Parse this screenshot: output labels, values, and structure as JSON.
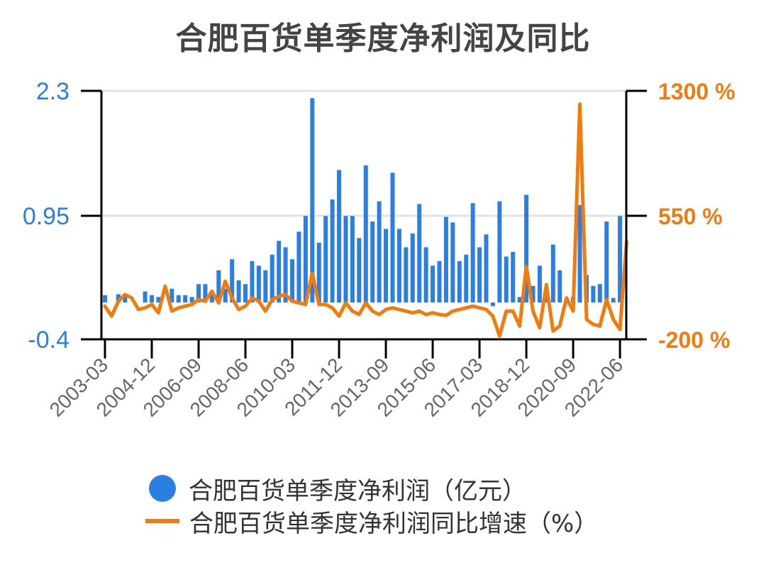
{
  "title": "合肥百货单季度净利润及同比",
  "legend": {
    "bar_label": "合肥百货单季度净利润（亿元）",
    "line_label": "合肥百货单季度净利润同比增速（%）"
  },
  "axes": {
    "left_ticks": [
      "2.3",
      "0.95",
      "-0.4"
    ],
    "right_ticks": [
      "1300 %",
      "550 %",
      "-200 %"
    ],
    "x_ticks": [
      "2003-03",
      "2004-12",
      "2006-09",
      "2008-06",
      "2010-03",
      "2011-12",
      "2013-09",
      "2015-06",
      "2017-03",
      "2018-12",
      "2020-09",
      "2022-06"
    ]
  },
  "colors": {
    "bar": "#2a7fe0",
    "line": "#f07c0f",
    "grid": "#e3e3e3",
    "axis": "#000000"
  },
  "chart_data": {
    "type": "bar+line",
    "title": "合肥百货单季度净利润及同比",
    "xlabel": "",
    "ylabel_left": "净利润（亿元）",
    "ylabel_right": "同比增速（%）",
    "ylim_left": [
      -0.4,
      2.3
    ],
    "ylim_right": [
      -200,
      1300
    ],
    "grid": true,
    "legend_position": "bottom",
    "categories": [
      "2003-03",
      "2003-06",
      "2003-09",
      "2003-12",
      "2004-03",
      "2004-06",
      "2004-09",
      "2004-12",
      "2005-03",
      "2005-06",
      "2005-09",
      "2005-12",
      "2006-03",
      "2006-06",
      "2006-09",
      "2006-12",
      "2007-03",
      "2007-06",
      "2007-09",
      "2007-12",
      "2008-03",
      "2008-06",
      "2008-09",
      "2008-12",
      "2009-03",
      "2009-06",
      "2009-09",
      "2009-12",
      "2010-03",
      "2010-06",
      "2010-09",
      "2010-12",
      "2011-03",
      "2011-06",
      "2011-09",
      "2011-12",
      "2012-03",
      "2012-06",
      "2012-09",
      "2012-12",
      "2013-03",
      "2013-06",
      "2013-09",
      "2013-12",
      "2014-03",
      "2014-06",
      "2014-09",
      "2014-12",
      "2015-03",
      "2015-06",
      "2015-09",
      "2015-12",
      "2016-03",
      "2016-06",
      "2016-09",
      "2016-12",
      "2017-03",
      "2017-06",
      "2017-09",
      "2017-12",
      "2018-03",
      "2018-06",
      "2018-09",
      "2018-12",
      "2019-03",
      "2019-06",
      "2019-09",
      "2019-12",
      "2020-03",
      "2020-06",
      "2020-09",
      "2020-12",
      "2021-03",
      "2021-06",
      "2021-09",
      "2021-12",
      "2022-03",
      "2022-06",
      "2022-09"
    ],
    "series": [
      {
        "name": "合肥百货单季度净利润（亿元）",
        "type": "bar",
        "axis": "left",
        "values": [
          0.08,
          0.0,
          0.09,
          0.09,
          0.0,
          0.0,
          0.12,
          0.08,
          0.06,
          0.0,
          0.15,
          0.08,
          0.08,
          0.06,
          0.2,
          0.2,
          0.1,
          0.35,
          0.15,
          0.47,
          0.24,
          0.2,
          0.45,
          0.4,
          0.35,
          0.52,
          0.67,
          0.6,
          0.47,
          0.77,
          0.94,
          2.22,
          0.65,
          0.94,
          1.12,
          1.44,
          0.94,
          0.94,
          0.7,
          1.49,
          0.88,
          1.1,
          0.8,
          1.41,
          0.8,
          0.6,
          0.75,
          1.07,
          0.6,
          0.4,
          0.45,
          0.93,
          0.87,
          0.45,
          0.52,
          1.08,
          0.6,
          0.74,
          -0.04,
          1.1,
          0.5,
          0.55,
          0.06,
          1.17,
          0.18,
          0.4,
          0.06,
          0.63,
          0.35,
          0.0,
          0.06,
          1.06,
          0.3,
          0.18,
          0.2,
          0.88,
          0.05,
          0.94,
          0.0
        ]
      },
      {
        "name": "合肥百货单季度净利润同比增速（%）",
        "type": "line",
        "axis": "right",
        "values": [
          0,
          -60,
          30,
          70,
          50,
          -20,
          -10,
          10,
          -40,
          120,
          -30,
          -10,
          0,
          10,
          40,
          30,
          90,
          20,
          150,
          50,
          -20,
          0,
          50,
          30,
          -30,
          40,
          60,
          70,
          30,
          20,
          10,
          200,
          10,
          10,
          -10,
          -60,
          20,
          -30,
          -50,
          20,
          -30,
          -50,
          -20,
          -10,
          -20,
          -30,
          -40,
          -30,
          -50,
          -40,
          -50,
          -55,
          -30,
          -20,
          -10,
          0,
          -10,
          -20,
          -60,
          -180,
          -30,
          -30,
          -120,
          240,
          -30,
          -130,
          130,
          -150,
          -120,
          50,
          -30,
          1220,
          -80,
          -110,
          -120,
          40,
          -80,
          -140,
          390
        ]
      }
    ]
  }
}
